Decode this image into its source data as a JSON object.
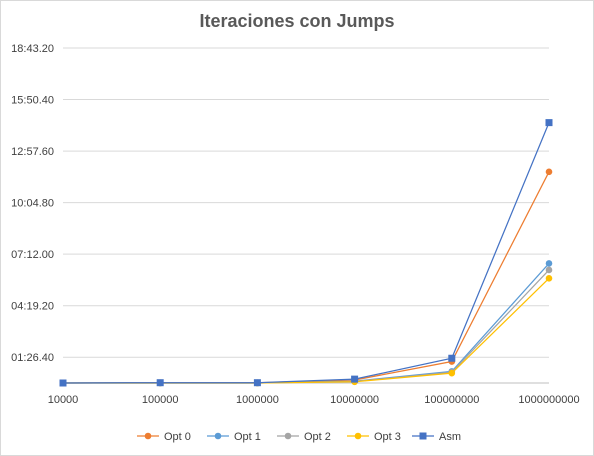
{
  "chart_data": {
    "type": "line",
    "title": "Iteraciones con Jumps",
    "x": [
      "10000",
      "100000",
      "1000000",
      "10000000",
      "100000000",
      "1000000000"
    ],
    "y_tick_labels": [
      "",
      "01:26.40",
      "04:19.20",
      "07:12.00",
      "10:04.80",
      "12:57.60",
      "15:50.40",
      "18:43.20"
    ],
    "y_ticks_seconds": [
      0,
      86.4,
      259.2,
      432,
      604.8,
      777.6,
      950.4,
      1123.2
    ],
    "ylim_seconds": [
      0,
      1123.2
    ],
    "grid": true,
    "legend_position": "bottom",
    "series": [
      {
        "name": "Opt 0",
        "color": "#ED7D31",
        "marker": "circle",
        "values_seconds": [
          0,
          1,
          1,
          10,
          72,
          708
        ]
      },
      {
        "name": "Opt 1",
        "color": "#5B9BD5",
        "marker": "circle",
        "values_seconds": [
          0,
          0,
          0,
          6,
          39,
          401
        ]
      },
      {
        "name": "Opt 2",
        "color": "#A5A5A5",
        "marker": "circle",
        "values_seconds": [
          0,
          0,
          0,
          5,
          36,
          379
        ]
      },
      {
        "name": "Opt 3",
        "color": "#FFC000",
        "marker": "circle",
        "values_seconds": [
          0,
          0,
          0,
          4,
          33,
          351
        ]
      },
      {
        "name": "Asm",
        "color": "#4472C4",
        "marker": "square",
        "values_seconds": [
          0,
          1,
          1,
          13,
          83,
          873
        ]
      }
    ]
  }
}
